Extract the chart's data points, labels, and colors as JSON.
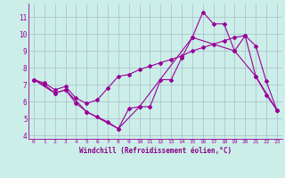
{
  "bg_color": "#cceee8",
  "line_color": "#990099",
  "grid_color": "#aabbcc",
  "xlabel": "Windchill (Refroidissement éolien,°C)",
  "xlabel_color": "#880088",
  "xlim": [
    -0.5,
    23.5
  ],
  "ylim": [
    3.8,
    11.8
  ],
  "yticks": [
    4,
    5,
    6,
    7,
    8,
    9,
    10,
    11
  ],
  "xticks": [
    0,
    1,
    2,
    3,
    4,
    5,
    6,
    7,
    8,
    9,
    10,
    11,
    12,
    13,
    14,
    15,
    16,
    17,
    18,
    19,
    20,
    21,
    22,
    23
  ],
  "series": [
    {
      "x": [
        0,
        1,
        2,
        3,
        4,
        5,
        6,
        7,
        8,
        9,
        10,
        11,
        12,
        13,
        14,
        15,
        16,
        17,
        18,
        19,
        20,
        21,
        22,
        23
      ],
      "y": [
        7.3,
        7.0,
        6.5,
        6.7,
        5.9,
        5.4,
        5.1,
        4.8,
        4.4,
        5.6,
        5.7,
        5.7,
        7.3,
        7.3,
        8.6,
        9.8,
        11.3,
        10.6,
        10.6,
        9.0,
        9.9,
        7.5,
        6.4,
        5.5
      ]
    },
    {
      "x": [
        0,
        1,
        2,
        3,
        4,
        5,
        6,
        7,
        8,
        9,
        10,
        11,
        12,
        13,
        14,
        15,
        16,
        17,
        18,
        19,
        20,
        21,
        22,
        23
      ],
      "y": [
        7.3,
        7.1,
        6.7,
        6.9,
        6.2,
        5.9,
        6.1,
        6.8,
        7.5,
        7.6,
        7.9,
        8.1,
        8.3,
        8.5,
        8.7,
        9.0,
        9.2,
        9.4,
        9.6,
        9.8,
        9.9,
        9.3,
        7.2,
        5.5
      ]
    },
    {
      "x": [
        0,
        2,
        3,
        5,
        8,
        10,
        15,
        19,
        21,
        23
      ],
      "y": [
        7.3,
        6.5,
        6.7,
        5.4,
        4.4,
        5.7,
        9.8,
        9.0,
        7.5,
        5.5
      ]
    }
  ]
}
